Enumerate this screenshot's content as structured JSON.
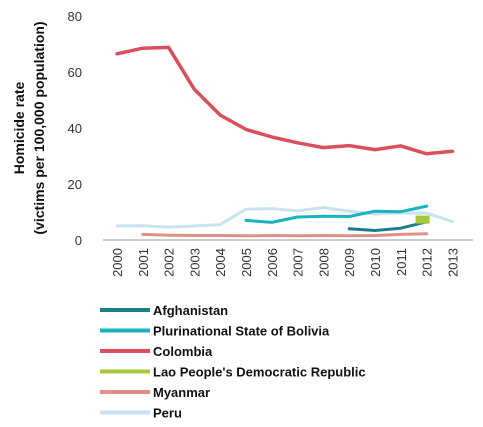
{
  "chart_data": {
    "type": "line",
    "title": "",
    "ylabel_line1": "Homicide rate",
    "ylabel_line2": "(victims per 100,000 population)",
    "xlabel": "",
    "x": [
      "2000",
      "2001",
      "2002",
      "2003",
      "2004",
      "2005",
      "2006",
      "2007",
      "2008",
      "2009",
      "2010",
      "2011",
      "2012",
      "2013"
    ],
    "ylim": [
      0,
      80
    ],
    "yticks": [
      "0",
      "20",
      "40",
      "60",
      "80"
    ],
    "grid": false,
    "legend_position": "bottom-left",
    "series": [
      {
        "name": "Afghanistan",
        "color": "#1a7f87",
        "values": [
          null,
          null,
          null,
          null,
          null,
          null,
          null,
          null,
          null,
          4.0,
          3.4,
          4.2,
          6.5,
          null
        ]
      },
      {
        "name": "Plurinational State of Bolivia",
        "color": "#19b3bf",
        "values": [
          null,
          null,
          null,
          null,
          null,
          7.0,
          6.3,
          8.2,
          8.5,
          8.4,
          10.3,
          10.1,
          12.1,
          null
        ]
      },
      {
        "name": "Colombia",
        "color": "#d9505d",
        "values": [
          66.5,
          68.5,
          68.8,
          53.8,
          44.6,
          39.5,
          36.8,
          34.7,
          33.0,
          33.7,
          32.3,
          33.6,
          30.8,
          31.7
        ]
      },
      {
        "name": "Lao People's Democratic Republic",
        "color": "#a6c73a",
        "values": [
          null,
          null,
          null,
          null,
          null,
          null,
          null,
          null,
          null,
          null,
          null,
          null,
          7.3,
          null
        ]
      },
      {
        "name": "Myanmar",
        "color": "#e08f8c",
        "values": [
          null,
          2.0,
          1.7,
          1.6,
          1.6,
          1.5,
          1.6,
          1.5,
          1.6,
          1.5,
          1.6,
          2.0,
          2.2,
          null
        ]
      },
      {
        "name": "Peru",
        "color": "#c8e2ef",
        "values": [
          5.0,
          5.1,
          4.6,
          5.0,
          5.5,
          11.0,
          11.2,
          10.4,
          11.6,
          10.3,
          9.3,
          9.6,
          9.6,
          6.6
        ]
      }
    ]
  }
}
